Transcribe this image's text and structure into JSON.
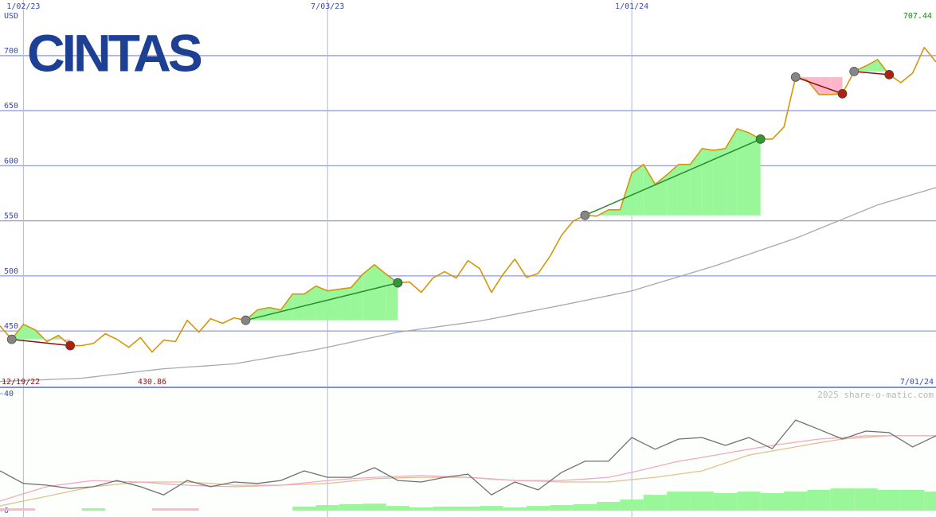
{
  "chart_data": [
    {
      "type": "line",
      "logo": "CINTAS",
      "unit_label": "USD",
      "range_start": "12/19/22",
      "range_end": "7/01/24",
      "categories": [
        null,
        null,
        "1/02/23",
        null,
        null,
        null,
        null,
        null,
        null,
        null,
        null,
        null,
        null,
        null,
        null,
        null,
        null,
        null,
        null,
        null,
        null,
        null,
        null,
        null,
        null,
        null,
        null,
        null,
        "7/03/23",
        null,
        null,
        null,
        null,
        null,
        null,
        null,
        null,
        null,
        null,
        null,
        null,
        null,
        null,
        null,
        null,
        null,
        null,
        null,
        null,
        null,
        null,
        null,
        null,
        null,
        "1/01/24",
        null,
        null,
        null,
        null,
        null,
        null,
        null,
        null,
        null,
        null,
        null,
        null,
        null,
        null,
        null,
        null,
        null,
        null,
        null,
        null,
        null,
        null,
        null,
        null,
        null,
        null
      ],
      "ylim": [
        398.8,
        750.5
      ],
      "yticks": [
        450,
        500,
        550,
        600,
        650,
        700
      ],
      "grid": true,
      "series": [
        {
          "color": "#d4960a",
          "values": [
            454.7,
            442.4,
            456.1,
            451.1,
            440.3,
            446.0,
            436.7,
            436.7,
            438.8,
            447.5,
            442.4,
            435.2,
            443.9,
            430.86,
            441.7,
            440.3,
            459.7,
            448.9,
            461.2,
            456.9,
            461.9,
            459.7,
            469.1,
            471.3,
            469.1,
            483.5,
            483.5,
            490.8,
            486.4,
            487.9,
            489.3,
            501.6,
            510.2,
            501.6,
            493.7,
            494.4,
            485.0,
            498.0,
            503.8,
            498.0,
            513.9,
            506.6,
            485.0,
            501.6,
            515.3,
            498.7,
            502.3,
            517.5,
            536.9,
            549.9,
            555.0,
            554.3,
            560.0,
            560.0,
            593.2,
            601.2,
            583.1,
            591.8,
            601.2,
            601.2,
            615.6,
            614.1,
            615.6,
            633.6,
            630.0,
            624.2,
            624.2,
            635.1,
            680.5,
            677.6,
            664.6,
            664.6,
            665.4,
            685.6,
            690.6,
            696.4,
            682.7,
            675.5,
            684.1,
            707.44,
            694.2
          ]
        },
        {
          "color": "#a8a8a8",
          "values": [
            404.2,
            404.6,
            405.0,
            405.4,
            405.8,
            406.3,
            406.7,
            407.1,
            408.3,
            409.6,
            410.8,
            412.0,
            413.3,
            414.5,
            415.7,
            416.4,
            417.2,
            417.9,
            418.6,
            419.4,
            420.1,
            421.9,
            423.8,
            425.6,
            427.5,
            429.3,
            431.2,
            433.0,
            435.3,
            437.5,
            439.8,
            442.1,
            444.4,
            446.6,
            448.9,
            450.3,
            451.8,
            453.2,
            454.7,
            456.1,
            457.6,
            459.0,
            461.0,
            463.1,
            465.1,
            467.2,
            469.2,
            471.3,
            473.3,
            475.5,
            477.7,
            479.9,
            482.0,
            484.2,
            486.4,
            489.6,
            492.8,
            496.0,
            499.2,
            502.4,
            505.6,
            508.8,
            512.4,
            516.0,
            519.6,
            523.3,
            526.9,
            530.5,
            534.1,
            538.4,
            542.8,
            547.1,
            551.4,
            555.7,
            560.1,
            564.4,
            567.6,
            570.7,
            573.9,
            577.0,
            580.2
          ]
        }
      ],
      "trades": [
        {
          "start": 1,
          "end": 6
        },
        {
          "start": 21,
          "end": 34
        },
        {
          "start": 50,
          "end": 65
        },
        {
          "start": 68,
          "end": 72
        },
        {
          "start": 73,
          "end": 76
        }
      ],
      "gain_color": "#99f799",
      "loss_color": "#ffb6c8",
      "gain_line_color": "#2a8a2a",
      "loss_line_color": "#8b1010",
      "start_marker_color": "#858585",
      "gain_marker_color": "#2f9a2f",
      "loss_marker_color": "#b0200e",
      "high_color": "#1a8a1a",
      "low_color": "#8b1010"
    },
    {
      "type": "line",
      "watermark": "2025 share-o-matic.com",
      "categories": [
        null,
        null,
        null,
        null,
        null,
        null,
        null,
        null,
        null,
        null,
        null,
        null,
        null,
        null,
        null,
        null,
        null,
        null,
        null,
        null,
        null,
        null,
        null,
        null,
        null,
        null,
        null,
        null,
        null,
        null,
        null,
        null,
        null,
        null,
        null,
        null,
        null,
        null,
        null,
        null,
        null
      ],
      "ylim": [
        0,
        40
      ],
      "yticks": [
        0,
        40
      ],
      "series": [
        {
          "kind": "bar",
          "color": "#ffb6c8",
          "values": [
            0.8,
            0.8,
            null,
            null,
            null,
            null,
            null,
            0.8,
            0.8,
            null,
            null,
            null,
            null,
            null,
            null,
            null,
            null,
            null,
            null,
            null,
            null,
            null,
            null,
            null,
            null,
            null,
            null,
            null,
            null,
            null,
            null,
            null,
            null,
            null,
            null,
            null,
            null,
            null,
            null,
            null,
            null
          ]
        },
        {
          "kind": "bar",
          "color": "#99f799",
          "values": [
            null,
            null,
            null,
            null,
            0.8,
            null,
            null,
            null,
            null,
            null,
            null,
            null,
            null,
            1.4,
            1.9,
            2.2,
            2.4,
            1.6,
            1.1,
            1.4,
            1.4,
            1.6,
            1.1,
            1.6,
            1.9,
            2.2,
            3.0,
            3.8,
            5.4,
            6.5,
            6.5,
            6.0,
            6.5,
            6.0,
            6.5,
            7.1,
            7.6,
            7.6,
            7.1,
            7.1,
            6.5
          ]
        },
        {
          "kind": "line",
          "color": "#e0c090",
          "values": [
            1.6,
            3.3,
            4.9,
            6.6,
            8.2,
            9.0,
            9.8,
            9.8,
            9.8,
            9.3,
            8.7,
            8.7,
            8.7,
            9.0,
            9.3,
            10.1,
            10.9,
            11.2,
            11.4,
            11.4,
            11.4,
            10.9,
            10.3,
            10.1,
            9.8,
            9.8,
            9.8,
            10.6,
            11.4,
            12.5,
            13.6,
            16.3,
            19.0,
            20.4,
            21.8,
            23.2,
            24.5,
            25.1,
            25.6,
            25.6,
            25.6
          ]
        },
        {
          "kind": "line",
          "color": "#f4a8c4",
          "values": [
            3.3,
            5.8,
            8.2,
            9.3,
            10.3,
            10.0,
            9.8,
            9.2,
            8.7,
            8.4,
            8.2,
            8.4,
            8.7,
            9.5,
            10.3,
            10.9,
            11.4,
            11.7,
            12.0,
            11.7,
            11.4,
            10.8,
            10.3,
            10.3,
            10.3,
            10.8,
            11.4,
            13.1,
            15.0,
            16.9,
            18.2,
            19.6,
            21.0,
            22.3,
            23.4,
            24.5,
            25.0,
            25.6,
            25.6,
            25.6,
            25.6
          ]
        },
        {
          "kind": "line",
          "color": "#707070",
          "values": [
            13.6,
            9.3,
            8.7,
            7.6,
            8.2,
            10.3,
            8.2,
            5.4,
            10.3,
            8.2,
            9.8,
            9.3,
            10.3,
            13.6,
            11.4,
            11.4,
            14.7,
            10.3,
            9.8,
            11.4,
            12.5,
            5.4,
            9.8,
            7.1,
            13.1,
            16.9,
            16.9,
            25.0,
            21.0,
            24.5,
            25.0,
            22.3,
            25.0,
            21.2,
            31.0,
            27.8,
            24.5,
            27.2,
            26.7,
            21.8,
            25.6
          ]
        }
      ]
    }
  ]
}
